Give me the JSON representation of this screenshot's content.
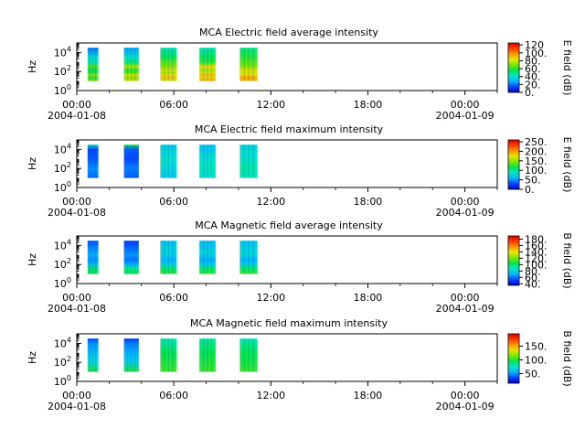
{
  "figure": {
    "background": "#ffffff"
  },
  "chart_data": [
    {
      "type": "heatmap",
      "title": "MCA  Electric field average intensity",
      "ylabel": "Hz",
      "colorbar_label": "E field (dB)",
      "colorbar_ticks": [
        "0.",
        "20.",
        "40.",
        "60.",
        "80.",
        "100.",
        "120"
      ],
      "colorbar_range": [
        0,
        125
      ],
      "palette": [
        "#0000c8",
        "#0044ff",
        "#00b4ff",
        "#00e6c8",
        "#00e650",
        "#7ce600",
        "#e6e600",
        "#ff9600",
        "#ff3c00",
        "#dc0000"
      ],
      "x_range": [
        "2004-01-08 00:00",
        "2004-01-09 02:00"
      ],
      "x_ticks": [
        {
          "time": "00:00",
          "date": "2004-01-08"
        },
        {
          "time": "06:00",
          "date": ""
        },
        {
          "time": "12:00",
          "date": ""
        },
        {
          "time": "18:00",
          "date": ""
        },
        {
          "time": "00:00",
          "date": "2004-01-09"
        }
      ],
      "y_ticks": [
        {
          "base": "10",
          "exp": "0",
          "value": 1
        },
        {
          "base": "10",
          "exp": "2",
          "value": 100
        },
        {
          "base": "10",
          "exp": "4",
          "value": 10000
        }
      ],
      "y_scale": "log",
      "y_range": [
        1,
        100000
      ],
      "data_frequency_range": [
        10,
        31623
      ],
      "segments": [
        {
          "start": "00:40",
          "end": "01:20",
          "bands": [
            [
              10,
              70
            ],
            [
              25,
              60
            ],
            [
              40,
              75
            ],
            [
              75,
              60
            ],
            [
              130,
              55
            ],
            [
              320,
              65
            ],
            [
              1000,
              45
            ],
            [
              3200,
              40
            ],
            [
              31623,
              20
            ]
          ]
        },
        {
          "start": "02:55",
          "end": "03:50",
          "bands": [
            [
              10,
              80
            ],
            [
              25,
              70
            ],
            [
              40,
              85
            ],
            [
              75,
              65
            ],
            [
              130,
              60
            ],
            [
              320,
              75
            ],
            [
              1000,
              50
            ],
            [
              3200,
              40
            ],
            [
              31623,
              25
            ]
          ]
        },
        {
          "start": "05:10",
          "end": "06:10",
          "bands": [
            [
              10,
              80
            ],
            [
              25,
              90
            ],
            [
              40,
              85
            ],
            [
              75,
              75
            ],
            [
              130,
              80
            ],
            [
              320,
              70
            ],
            [
              1000,
              65
            ],
            [
              3200,
              55
            ],
            [
              31623,
              45
            ]
          ]
        },
        {
          "start": "07:35",
          "end": "08:35",
          "bands": [
            [
              10,
              95
            ],
            [
              25,
              85
            ],
            [
              40,
              90
            ],
            [
              75,
              80
            ],
            [
              130,
              75
            ],
            [
              320,
              85
            ],
            [
              1000,
              60
            ],
            [
              3200,
              55
            ],
            [
              31623,
              45
            ]
          ]
        },
        {
          "start": "10:05",
          "end": "11:10",
          "bands": [
            [
              10,
              90
            ],
            [
              25,
              95
            ],
            [
              40,
              85
            ],
            [
              75,
              80
            ],
            [
              130,
              85
            ],
            [
              320,
              70
            ],
            [
              1000,
              65
            ],
            [
              3200,
              60
            ],
            [
              31623,
              50
            ]
          ]
        }
      ]
    },
    {
      "type": "heatmap",
      "title": "MCA  Electric field maximum intensity",
      "ylabel": "Hz",
      "colorbar_label": "E field (dB)",
      "colorbar_ticks": [
        "0.",
        "50.",
        "100.",
        "150.",
        "200.",
        "250."
      ],
      "colorbar_range": [
        0,
        260
      ],
      "palette": [
        "#0000c8",
        "#0044ff",
        "#00b4ff",
        "#00e6c8",
        "#00e650",
        "#7ce600",
        "#e6e600",
        "#ff9600",
        "#ff3c00",
        "#dc0000"
      ],
      "x_range": [
        "2004-01-08 00:00",
        "2004-01-09 02:00"
      ],
      "x_ticks": [
        {
          "time": "00:00",
          "date": "2004-01-08"
        },
        {
          "time": "06:00",
          "date": ""
        },
        {
          "time": "12:00",
          "date": ""
        },
        {
          "time": "18:00",
          "date": ""
        },
        {
          "time": "00:00",
          "date": "2004-01-09"
        }
      ],
      "y_ticks": [
        {
          "base": "10",
          "exp": "0",
          "value": 1
        },
        {
          "base": "10",
          "exp": "2",
          "value": 100
        },
        {
          "base": "10",
          "exp": "4",
          "value": 10000
        }
      ],
      "y_scale": "log",
      "y_range": [
        1,
        100000
      ],
      "data_frequency_range": [
        10,
        31623
      ],
      "segments": [
        {
          "start": "00:40",
          "end": "01:20",
          "bands": [
            [
              10,
              40
            ],
            [
              100,
              50
            ],
            [
              1000,
              35
            ],
            [
              10000,
              30
            ],
            [
              31623,
              90
            ]
          ]
        },
        {
          "start": "02:55",
          "end": "03:50",
          "bands": [
            [
              10,
              35
            ],
            [
              100,
              45
            ],
            [
              1000,
              30
            ],
            [
              10000,
              35
            ],
            [
              31623,
              120
            ]
          ]
        },
        {
          "start": "05:10",
          "end": "06:10",
          "bands": [
            [
              10,
              70
            ],
            [
              100,
              80
            ],
            [
              1000,
              85
            ],
            [
              10000,
              75
            ],
            [
              31623,
              70
            ]
          ]
        },
        {
          "start": "07:35",
          "end": "08:35",
          "bands": [
            [
              10,
              80
            ],
            [
              100,
              90
            ],
            [
              1000,
              85
            ],
            [
              10000,
              70
            ],
            [
              31623,
              65
            ]
          ]
        },
        {
          "start": "10:05",
          "end": "11:10",
          "bands": [
            [
              10,
              90
            ],
            [
              100,
              95
            ],
            [
              1000,
              85
            ],
            [
              10000,
              80
            ],
            [
              31623,
              75
            ]
          ]
        }
      ]
    },
    {
      "type": "heatmap",
      "title": "MCA  Magnetic field average intensity",
      "ylabel": "Hz",
      "colorbar_label": "B field (dB)",
      "colorbar_ticks": [
        "40.",
        "60.",
        "80.",
        "100.",
        "120.",
        "140.",
        "160.",
        "180."
      ],
      "colorbar_range": [
        35,
        190
      ],
      "palette": [
        "#0000c8",
        "#0044ff",
        "#00b4ff",
        "#00e6c8",
        "#00e650",
        "#7ce600",
        "#e6e600",
        "#ff9600",
        "#ff3c00",
        "#dc0000"
      ],
      "x_range": [
        "2004-01-08 00:00",
        "2004-01-09 02:00"
      ],
      "x_ticks": [
        {
          "time": "00:00",
          "date": "2004-01-08"
        },
        {
          "time": "06:00",
          "date": ""
        },
        {
          "time": "12:00",
          "date": ""
        },
        {
          "time": "18:00",
          "date": ""
        },
        {
          "time": "00:00",
          "date": "2004-01-09"
        }
      ],
      "y_ticks": [
        {
          "base": "10",
          "exp": "0",
          "value": 1
        },
        {
          "base": "10",
          "exp": "2",
          "value": 100
        },
        {
          "base": "10",
          "exp": "4",
          "value": 10000
        }
      ],
      "y_scale": "log",
      "y_range": [
        1,
        100000
      ],
      "data_frequency_range": [
        10,
        31623
      ],
      "segments": [
        {
          "start": "00:40",
          "end": "01:20",
          "bands": [
            [
              10,
              105
            ],
            [
              40,
              100
            ],
            [
              100,
              75
            ],
            [
              300,
              65
            ],
            [
              1000,
              70
            ],
            [
              10000,
              60
            ],
            [
              31623,
              55
            ]
          ]
        },
        {
          "start": "02:55",
          "end": "03:50",
          "bands": [
            [
              10,
              105
            ],
            [
              40,
              95
            ],
            [
              100,
              70
            ],
            [
              300,
              60
            ],
            [
              1000,
              65
            ],
            [
              10000,
              55
            ],
            [
              31623,
              50
            ]
          ]
        },
        {
          "start": "05:10",
          "end": "06:10",
          "bands": [
            [
              10,
              110
            ],
            [
              40,
              100
            ],
            [
              100,
              80
            ],
            [
              300,
              70
            ],
            [
              1000,
              80
            ],
            [
              10000,
              78
            ],
            [
              31623,
              75
            ]
          ]
        },
        {
          "start": "07:35",
          "end": "08:35",
          "bands": [
            [
              10,
              110
            ],
            [
              40,
              100
            ],
            [
              100,
              78
            ],
            [
              300,
              68
            ],
            [
              1000,
              80
            ],
            [
              10000,
              76
            ],
            [
              31623,
              72
            ]
          ]
        },
        {
          "start": "10:05",
          "end": "11:10",
          "bands": [
            [
              10,
              112
            ],
            [
              40,
              100
            ],
            [
              100,
              80
            ],
            [
              300,
              70
            ],
            [
              1000,
              82
            ],
            [
              10000,
              78
            ],
            [
              31623,
              74
            ]
          ]
        }
      ]
    },
    {
      "type": "heatmap",
      "title": "MCA  Magnetic field maximum intensity",
      "ylabel": "Hz",
      "colorbar_label": "B field (dB)",
      "colorbar_ticks": [
        "50.",
        "100.",
        "150."
      ],
      "colorbar_range": [
        15,
        195
      ],
      "palette": [
        "#0000c8",
        "#0044ff",
        "#00b4ff",
        "#00e6c8",
        "#00e650",
        "#7ce600",
        "#e6e600",
        "#ff9600",
        "#ff3c00",
        "#dc0000"
      ],
      "x_range": [
        "2004-01-08 00:00",
        "2004-01-09 02:00"
      ],
      "x_ticks": [
        {
          "time": "00:00",
          "date": "2004-01-08"
        },
        {
          "time": "06:00",
          "date": ""
        },
        {
          "time": "12:00",
          "date": ""
        },
        {
          "time": "18:00",
          "date": ""
        },
        {
          "time": "00:00",
          "date": "2004-01-09"
        }
      ],
      "y_ticks": [
        {
          "base": "10",
          "exp": "0",
          "value": 1
        },
        {
          "base": "10",
          "exp": "2",
          "value": 100
        },
        {
          "base": "10",
          "exp": "4",
          "value": 10000
        }
      ],
      "y_scale": "log",
      "y_range": [
        1,
        100000
      ],
      "data_frequency_range": [
        10,
        31623
      ],
      "segments": [
        {
          "start": "00:40",
          "end": "01:20",
          "bands": [
            [
              10,
              100
            ],
            [
              100,
              70
            ],
            [
              1000,
              60
            ],
            [
              10000,
              50
            ],
            [
              31623,
              35
            ]
          ]
        },
        {
          "start": "02:55",
          "end": "03:50",
          "bands": [
            [
              10,
              100
            ],
            [
              100,
              65
            ],
            [
              1000,
              55
            ],
            [
              10000,
              45
            ],
            [
              31623,
              30
            ]
          ]
        },
        {
          "start": "05:10",
          "end": "06:10",
          "bands": [
            [
              10,
              105
            ],
            [
              100,
              100
            ],
            [
              1000,
              95
            ],
            [
              10000,
              85
            ],
            [
              31623,
              80
            ]
          ]
        },
        {
          "start": "07:35",
          "end": "08:35",
          "bands": [
            [
              10,
              105
            ],
            [
              100,
              100
            ],
            [
              1000,
              95
            ],
            [
              10000,
              88
            ],
            [
              31623,
              80
            ]
          ]
        },
        {
          "start": "10:05",
          "end": "11:10",
          "bands": [
            [
              10,
              105
            ],
            [
              100,
              98
            ],
            [
              1000,
              95
            ],
            [
              10000,
              85
            ],
            [
              31623,
              78
            ]
          ]
        }
      ]
    }
  ]
}
